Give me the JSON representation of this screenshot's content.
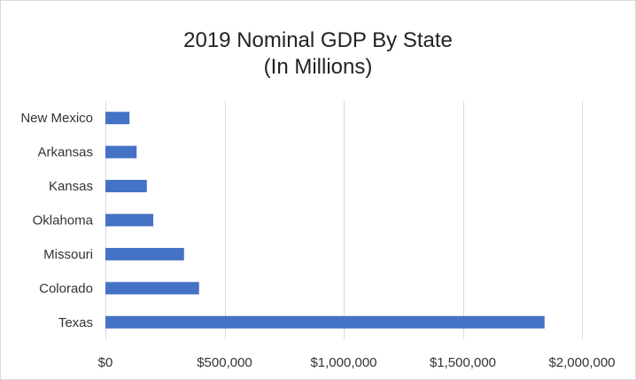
{
  "chart_data": {
    "type": "bar",
    "orientation": "horizontal",
    "title_lines": [
      "2019 Nominal GDP By State",
      "(In Millions)"
    ],
    "categories": [
      "New Mexico",
      "Arkansas",
      "Kansas",
      "Oklahoma",
      "Missouri",
      "Colorado",
      "Texas"
    ],
    "values": [
      101000,
      131000,
      174000,
      201000,
      330000,
      393000,
      1843000
    ],
    "xlim": [
      0,
      2000000
    ],
    "x_ticks": [
      0,
      500000,
      1000000,
      1500000,
      2000000
    ],
    "x_tick_labels": [
      "$0",
      "$500,000",
      "$1,000,000",
      "$1,500,000",
      "$2,000,000"
    ],
    "xlabel": "",
    "ylabel": "",
    "grid": "vertical",
    "legend": "none",
    "bar_color": "#4472c4",
    "grid_color": "#d9d9d9"
  }
}
